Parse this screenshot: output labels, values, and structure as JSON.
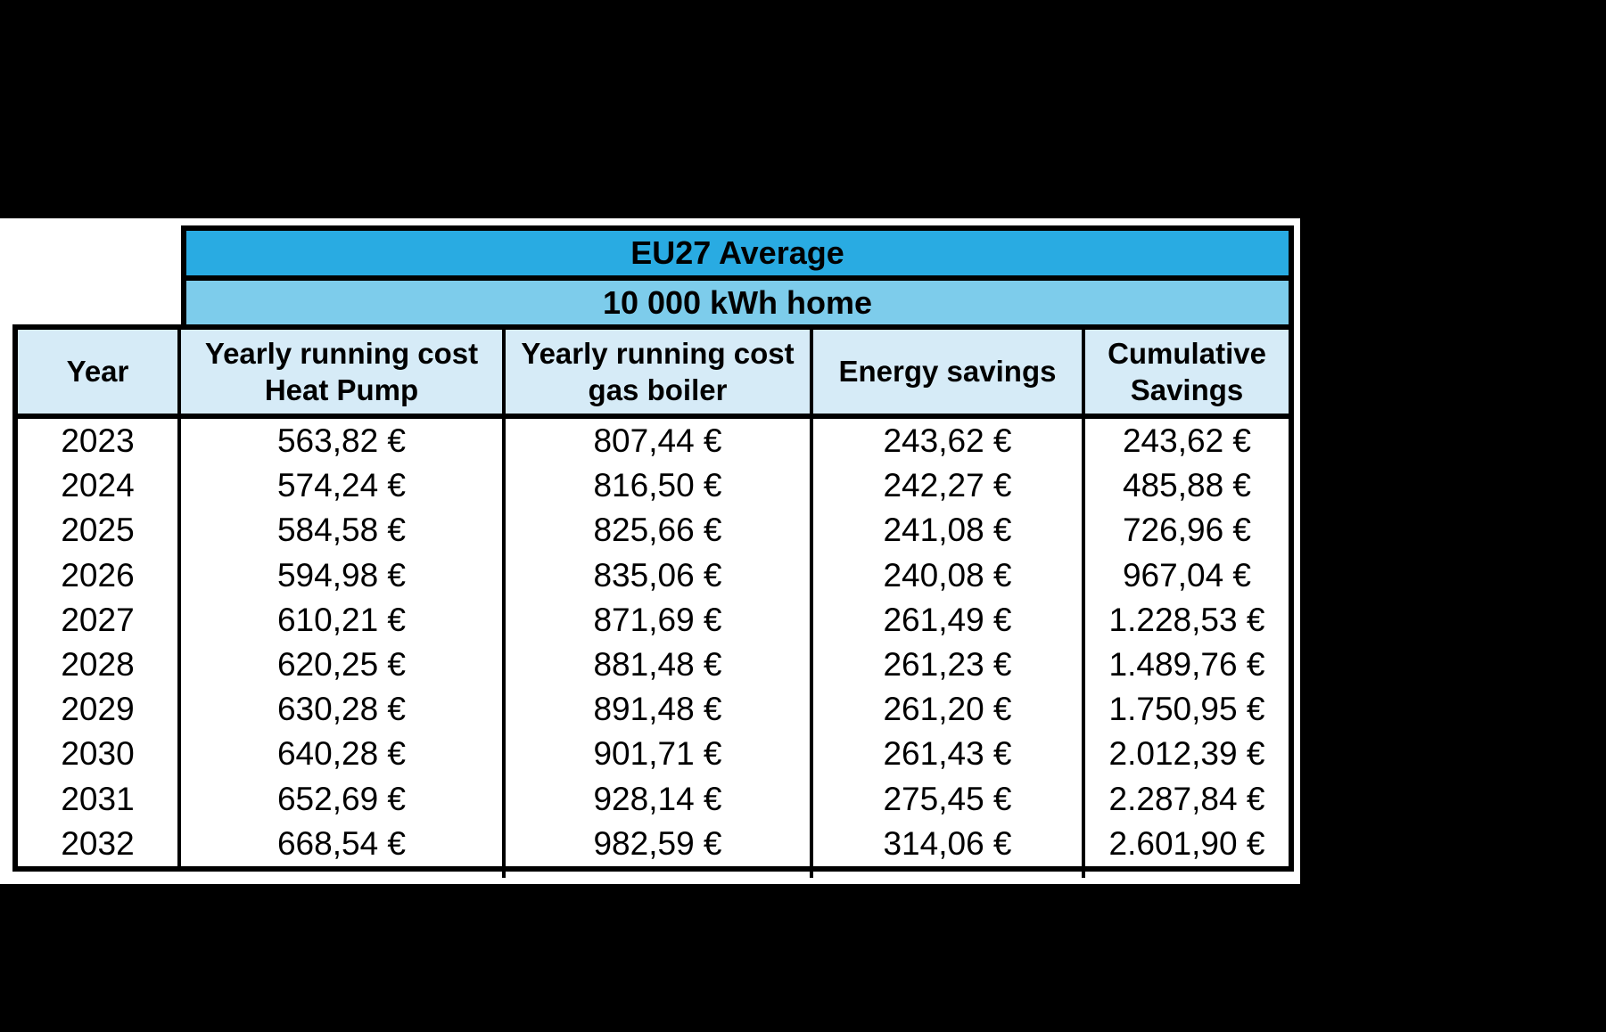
{
  "colors": {
    "frame_background": "#000000",
    "canvas_background": "#ffffff",
    "banner_primary": "#29ABE2",
    "banner_secondary": "#7DCCEB",
    "header_background": "#D6EBF7",
    "border": "#000000",
    "text": "#000000"
  },
  "chart_data": {
    "type": "table",
    "title": "EU27 Average",
    "subtitle": "10 000 kWh home",
    "columns": [
      "Year",
      "Yearly running cost\nHeat Pump",
      "Yearly running cost\ngas boiler",
      "Energy savings",
      "Cumulative\nSavings"
    ],
    "rows": [
      [
        "2023",
        "563,82 €",
        "807,44 €",
        "243,62 €",
        "243,62 €"
      ],
      [
        "2024",
        "574,24 €",
        "816,50 €",
        "242,27 €",
        "485,88 €"
      ],
      [
        "2025",
        "584,58 €",
        "825,66 €",
        "241,08 €",
        "726,96 €"
      ],
      [
        "2026",
        "594,98 €",
        "835,06 €",
        "240,08 €",
        "967,04 €"
      ],
      [
        "2027",
        "610,21 €",
        "871,69 €",
        "261,49 €",
        "1.228,53 €"
      ],
      [
        "2028",
        "620,25 €",
        "881,48 €",
        "261,23 €",
        "1.489,76 €"
      ],
      [
        "2029",
        "630,28 €",
        "891,48 €",
        "261,20 €",
        "1.750,95 €"
      ],
      [
        "2030",
        "640,28 €",
        "901,71 €",
        "261,43 €",
        "2.012,39 €"
      ],
      [
        "2031",
        "652,69 €",
        "928,14 €",
        "275,45 €",
        "2.287,84 €"
      ],
      [
        "2032",
        "668,54 €",
        "982,59 €",
        "314,06 €",
        "2.601,90 €"
      ]
    ],
    "units": "EUR",
    "notes_layout": "banner rows span data columns only; no horizontal lines between data rows; values centered"
  }
}
